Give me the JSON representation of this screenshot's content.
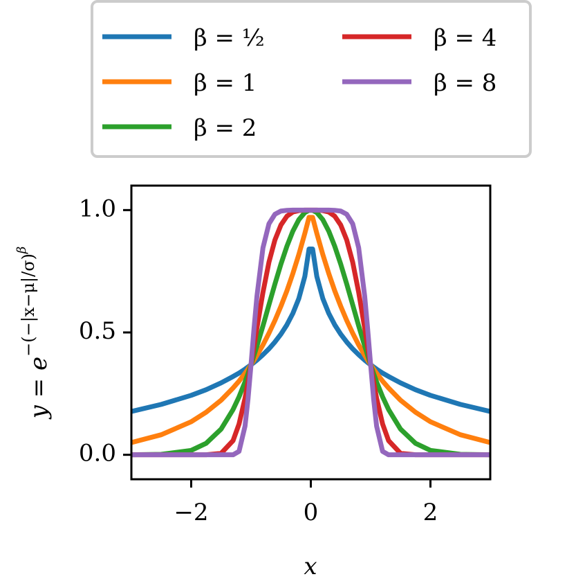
{
  "chart_data": {
    "type": "line",
    "xlabel": "x",
    "ylabel": {
      "base": "y = e",
      "exponent": "−(−|x−μ|/σ)",
      "power": "β"
    },
    "x": [
      -3,
      -2.5,
      -2,
      -1.75,
      -1.5,
      -1.3,
      -1.2,
      -1.1,
      -1.05,
      -1,
      -0.95,
      -0.9,
      -0.8,
      -0.7,
      -0.6,
      -0.5,
      -0.4,
      -0.3,
      -0.2,
      -0.1,
      -0.03,
      0.03,
      0.1,
      0.2,
      0.3,
      0.4,
      0.5,
      0.6,
      0.7,
      0.8,
      0.9,
      0.95,
      1,
      1.05,
      1.1,
      1.2,
      1.3,
      1.5,
      1.75,
      2,
      2.5,
      3
    ],
    "series": [
      {
        "name": "β = ½",
        "color": "#1f77b4",
        "values": [
          0.177,
          0.206,
          0.243,
          0.266,
          0.294,
          0.32,
          0.334,
          0.35,
          0.359,
          0.368,
          0.377,
          0.387,
          0.409,
          0.433,
          0.461,
          0.493,
          0.531,
          0.578,
          0.639,
          0.729,
          0.841,
          0.841,
          0.729,
          0.639,
          0.578,
          0.531,
          0.493,
          0.461,
          0.433,
          0.409,
          0.387,
          0.377,
          0.368,
          0.359,
          0.35,
          0.334,
          0.32,
          0.294,
          0.266,
          0.243,
          0.206,
          0.177
        ]
      },
      {
        "name": "β = 1",
        "color": "#ff7f0e",
        "values": [
          0.05,
          0.082,
          0.135,
          0.174,
          0.223,
          0.273,
          0.301,
          0.333,
          0.35,
          0.368,
          0.387,
          0.407,
          0.449,
          0.497,
          0.549,
          0.607,
          0.67,
          0.741,
          0.819,
          0.905,
          0.97,
          0.97,
          0.905,
          0.819,
          0.741,
          0.67,
          0.607,
          0.549,
          0.497,
          0.449,
          0.407,
          0.387,
          0.368,
          0.35,
          0.333,
          0.301,
          0.273,
          0.223,
          0.174,
          0.135,
          0.082,
          0.05
        ]
      },
      {
        "name": "β = 2",
        "color": "#2ca02c",
        "values": [
          0,
          0.002,
          0.018,
          0.047,
          0.105,
          0.185,
          0.237,
          0.298,
          0.332,
          0.368,
          0.406,
          0.445,
          0.527,
          0.613,
          0.698,
          0.779,
          0.852,
          0.914,
          0.961,
          0.99,
          0.999,
          0.999,
          0.99,
          0.961,
          0.914,
          0.852,
          0.779,
          0.698,
          0.613,
          0.527,
          0.445,
          0.406,
          0.368,
          0.332,
          0.298,
          0.237,
          0.185,
          0.105,
          0.047,
          0.018,
          0.002,
          0
        ]
      },
      {
        "name": "β = 4",
        "color": "#d62728",
        "values": [
          0,
          0,
          0,
          0,
          0.006,
          0.058,
          0.126,
          0.231,
          0.297,
          0.368,
          0.443,
          0.519,
          0.664,
          0.787,
          0.878,
          0.939,
          0.975,
          0.992,
          0.998,
          1,
          1,
          1,
          1,
          0.998,
          0.992,
          0.975,
          0.939,
          0.878,
          0.787,
          0.664,
          0.519,
          0.443,
          0.368,
          0.297,
          0.231,
          0.126,
          0.058,
          0.006,
          0,
          0,
          0,
          0
        ]
      },
      {
        "name": "β = 8",
        "color": "#9467bd",
        "values": [
          0,
          0,
          0,
          0,
          0,
          0,
          0.014,
          0.117,
          0.228,
          0.368,
          0.515,
          0.65,
          0.846,
          0.944,
          0.983,
          0.996,
          0.999,
          1,
          1,
          1,
          1,
          1,
          1,
          1,
          1,
          0.999,
          0.996,
          0.983,
          0.944,
          0.846,
          0.65,
          0.515,
          0.368,
          0.228,
          0.117,
          0.014,
          0,
          0,
          0,
          0,
          0,
          0
        ]
      }
    ],
    "xlim": [
      -3,
      3
    ],
    "ylim": [
      -0.1,
      1.1
    ],
    "xticks": [
      {
        "value": -2,
        "label": "−2"
      },
      0,
      2
    ],
    "yticks": [
      {
        "value": 0,
        "label": "0.0"
      },
      {
        "value": 0.5,
        "label": "0.5"
      },
      {
        "value": 1,
        "label": "1.0"
      }
    ],
    "legend": "top",
    "grid": false
  }
}
